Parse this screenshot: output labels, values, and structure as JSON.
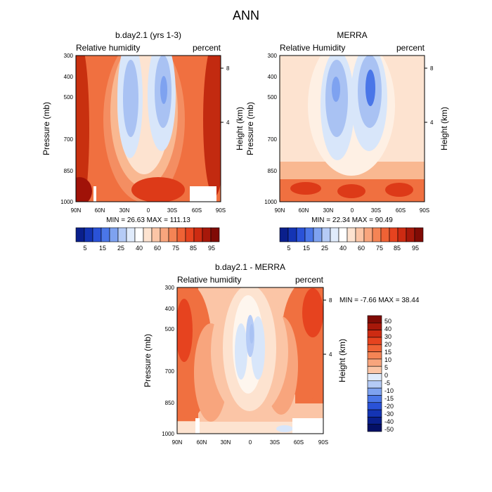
{
  "page_title": "ANN",
  "colors": {
    "blue_scale": [
      "#0a1f8c",
      "#1434b4",
      "#2a52d8",
      "#4a76e8",
      "#7ea2f0",
      "#b5cbf6",
      "#e0ebfb"
    ],
    "red_scale": [
      "#fde3d0",
      "#fbc5a6",
      "#f8a57d",
      "#f48455",
      "#ef6235",
      "#e6431f",
      "#cd2b12",
      "#a7180a",
      "#800b05"
    ],
    "missing": "#ffffff",
    "frame": "#000000"
  },
  "chart_data": [
    {
      "id": "model",
      "type": "contour",
      "title": "b.day2.1 (yrs 1-3)",
      "left_label": "Relative humidity",
      "right_label": "percent",
      "ylabel": "Pressure (mb)",
      "y2label": "Height (km)",
      "xticks": [
        "90N",
        "60N",
        "30N",
        "0",
        "30S",
        "60S",
        "90S"
      ],
      "xlim": [
        90,
        -90
      ],
      "yticks": [
        300,
        400,
        500,
        700,
        850,
        1000
      ],
      "ylim": [
        300,
        1000
      ],
      "y2ticks": [
        8,
        4
      ],
      "min": 26.63,
      "max": 111.13,
      "min_text": "MIN =  26.63  MAX = 111.13",
      "levels": [
        5,
        10,
        15,
        20,
        25,
        30,
        40,
        50,
        60,
        65,
        70,
        75,
        80,
        85,
        90,
        95
      ],
      "colorbar_labels": [
        "5",
        "15",
        "25",
        "40",
        "60",
        "75",
        "85",
        "95"
      ],
      "palette": "humidity"
    },
    {
      "id": "obs",
      "type": "contour",
      "title": "MERRA",
      "left_label": "Relative Humidity",
      "right_label": "percent",
      "ylabel": "Pressure (mb)",
      "y2label": "Height (km)",
      "xticks": [
        "90N",
        "60N",
        "30N",
        "0",
        "30S",
        "60S",
        "90S"
      ],
      "xlim": [
        90,
        -90
      ],
      "yticks": [
        300,
        400,
        500,
        700,
        850,
        1000
      ],
      "ylim": [
        300,
        1000
      ],
      "y2ticks": [
        8,
        4
      ],
      "min": 22.34,
      "max": 90.49,
      "min_text": "MIN =  22.34  MAX =  90.49",
      "levels": [
        5,
        10,
        15,
        20,
        25,
        30,
        40,
        50,
        60,
        65,
        70,
        75,
        80,
        85,
        90,
        95
      ],
      "colorbar_labels": [
        "5",
        "15",
        "25",
        "40",
        "60",
        "75",
        "85",
        "95"
      ],
      "palette": "humidity"
    },
    {
      "id": "diff",
      "type": "contour",
      "title": "b.day2.1 - MERRA",
      "left_label": "Relative humidity",
      "right_label": "percent",
      "ylabel": "Pressure (mb)",
      "y2label": "Height (km)",
      "xticks": [
        "90N",
        "60N",
        "30N",
        "0",
        "30S",
        "60S",
        "90S"
      ],
      "xlim": [
        90,
        -90
      ],
      "yticks": [
        300,
        400,
        500,
        700,
        850,
        1000
      ],
      "ylim": [
        300,
        1000
      ],
      "y2ticks": [
        8,
        4
      ],
      "min": -7.66,
      "max": 38.44,
      "min_text": "MIN =  -7.66  MAX =  38.44",
      "levels": [
        -50,
        -40,
        -30,
        -20,
        -15,
        -10,
        -5,
        0,
        5,
        10,
        15,
        20,
        30,
        40,
        50
      ],
      "colorbar_labels": [
        "50",
        "40",
        "30",
        "20",
        "15",
        "10",
        "5",
        "0",
        "-5",
        "-10",
        "-15",
        "-20",
        "-30",
        "-40",
        "-50"
      ],
      "palette": "difference"
    }
  ]
}
